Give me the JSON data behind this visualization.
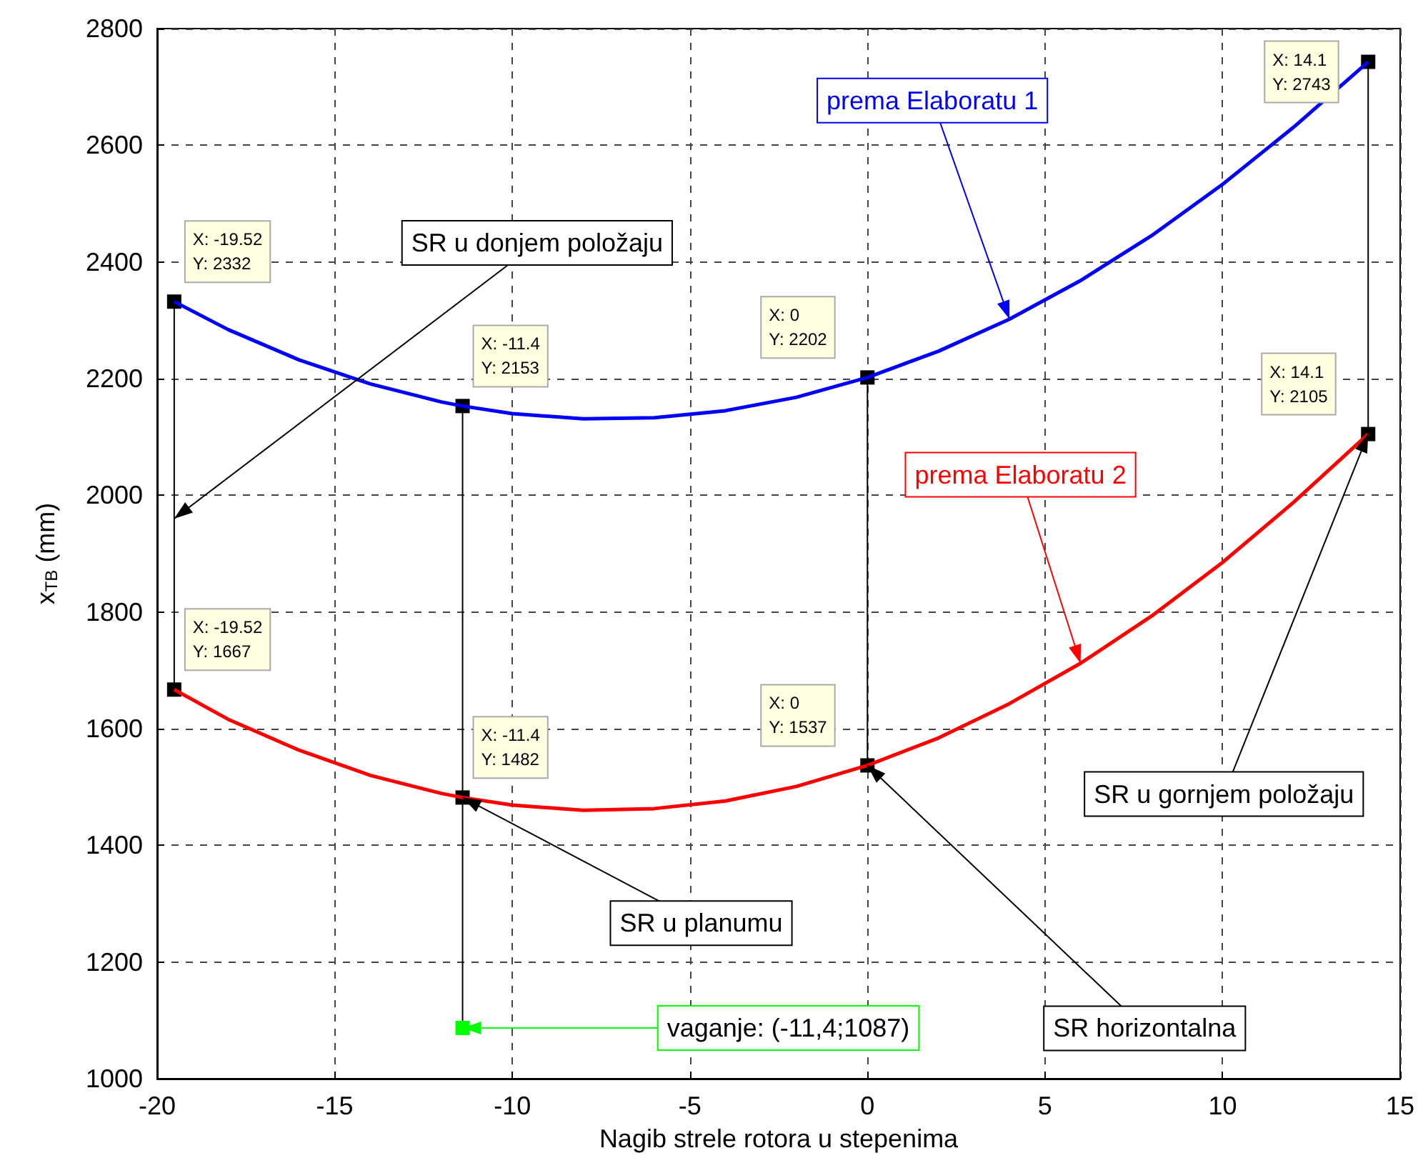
{
  "chart_data": {
    "type": "line",
    "xlabel": "Nagib strele rotora u stepenima",
    "ylabel": "x$_{TB}$ (mm)",
    "xlim": [
      -20,
      15
    ],
    "xticks": [
      -20,
      -15,
      -10,
      -5,
      0,
      5,
      10,
      15
    ],
    "ylim": [
      1000,
      2800
    ],
    "yticks": [
      1000,
      1200,
      1400,
      1600,
      1800,
      2000,
      2200,
      2400,
      2600,
      2800
    ],
    "grid": true,
    "legend": false,
    "series": [
      {
        "name": "prema Elaboratu 1",
        "color": "#0000ff",
        "x": [
          -19.52,
          -18,
          -16,
          -14,
          -12,
          -11.4,
          -10,
          -8,
          -6,
          -4,
          -2,
          0,
          2,
          4,
          6,
          8,
          10,
          12,
          14.1
        ],
        "values": [
          2332,
          2284,
          2232,
          2191,
          2160,
          2153,
          2140,
          2131,
          2133,
          2145,
          2168,
          2202,
          2247,
          2302,
          2368,
          2445,
          2533,
          2631,
          2743
        ]
      },
      {
        "name": "prema Elaboratu 2",
        "color": "#ff0000",
        "x": [
          -19.52,
          -18,
          -16,
          -14,
          -12,
          -11.4,
          -10,
          -8,
          -6,
          -4,
          -2,
          0,
          2,
          4,
          6,
          8,
          10,
          12,
          14.1
        ],
        "values": [
          1667,
          1616,
          1563,
          1520,
          1489,
          1482,
          1469,
          1460,
          1463,
          1476,
          1501,
          1537,
          1584,
          1643,
          1712,
          1793,
          1885,
          1988,
          2105
        ]
      },
      {
        "color": "#000000",
        "x": [
          -19.52,
          -19.52
        ],
        "values": [
          1667,
          2332
        ]
      },
      {
        "color": "#000000",
        "x": [
          -11.4,
          -11.4
        ],
        "values": [
          1087,
          2153
        ]
      },
      {
        "color": "#000000",
        "x": [
          0,
          0
        ],
        "values": [
          1537,
          2202
        ]
      },
      {
        "color": "#000000",
        "x": [
          14.1,
          14.1
        ],
        "values": [
          2105,
          2743
        ]
      },
      {
        "type": "scatter",
        "marker": "square",
        "color": "#000000",
        "x": [
          -19.52,
          -11.4,
          0,
          14.1,
          -19.52,
          -11.4,
          0,
          14.1
        ],
        "values": [
          2332,
          2153,
          2202,
          2743,
          1667,
          1482,
          1537,
          2105
        ]
      },
      {
        "type": "scatter",
        "marker": "square",
        "color": "#00ff00",
        "x": [
          -11.4
        ],
        "values": [
          1087
        ]
      }
    ],
    "annotations": [
      {
        "text": "X: -19.52\nY: 2332",
        "x": -19.52,
        "y": 2332
      },
      {
        "text": "X: -11.4\nY: 2153",
        "x": -11.4,
        "y": 2153
      },
      {
        "text": "X: 0\nY: 2202",
        "x": 0,
        "y": 2202
      },
      {
        "text": "X: 14.1\nY: 2743",
        "x": 14.1,
        "y": 2743
      },
      {
        "text": "X: -19.52\nY: 1667",
        "x": -19.52,
        "y": 1667
      },
      {
        "text": "X: -11.4\nY: 1482",
        "x": -11.4,
        "y": 1482
      },
      {
        "text": "X: 0\nY: 1537",
        "x": 0,
        "y": 1537
      },
      {
        "text": "X: 14.1\nY: 2105",
        "x": 14.1,
        "y": 2105
      },
      {
        "text": "SR u donjem položaju",
        "x": -19.52,
        "y": 1960
      },
      {
        "text": "SR u planumu",
        "x": -11.4,
        "y": 1482
      },
      {
        "text": "SR horizontalna",
        "x": 0,
        "y": 1537
      },
      {
        "text": "SR u gornjem položaju",
        "x": 14.1,
        "y": 2105
      },
      {
        "text": "vaganje: (-11,4;1087)",
        "x": -11.4,
        "y": 1087
      }
    ]
  }
}
